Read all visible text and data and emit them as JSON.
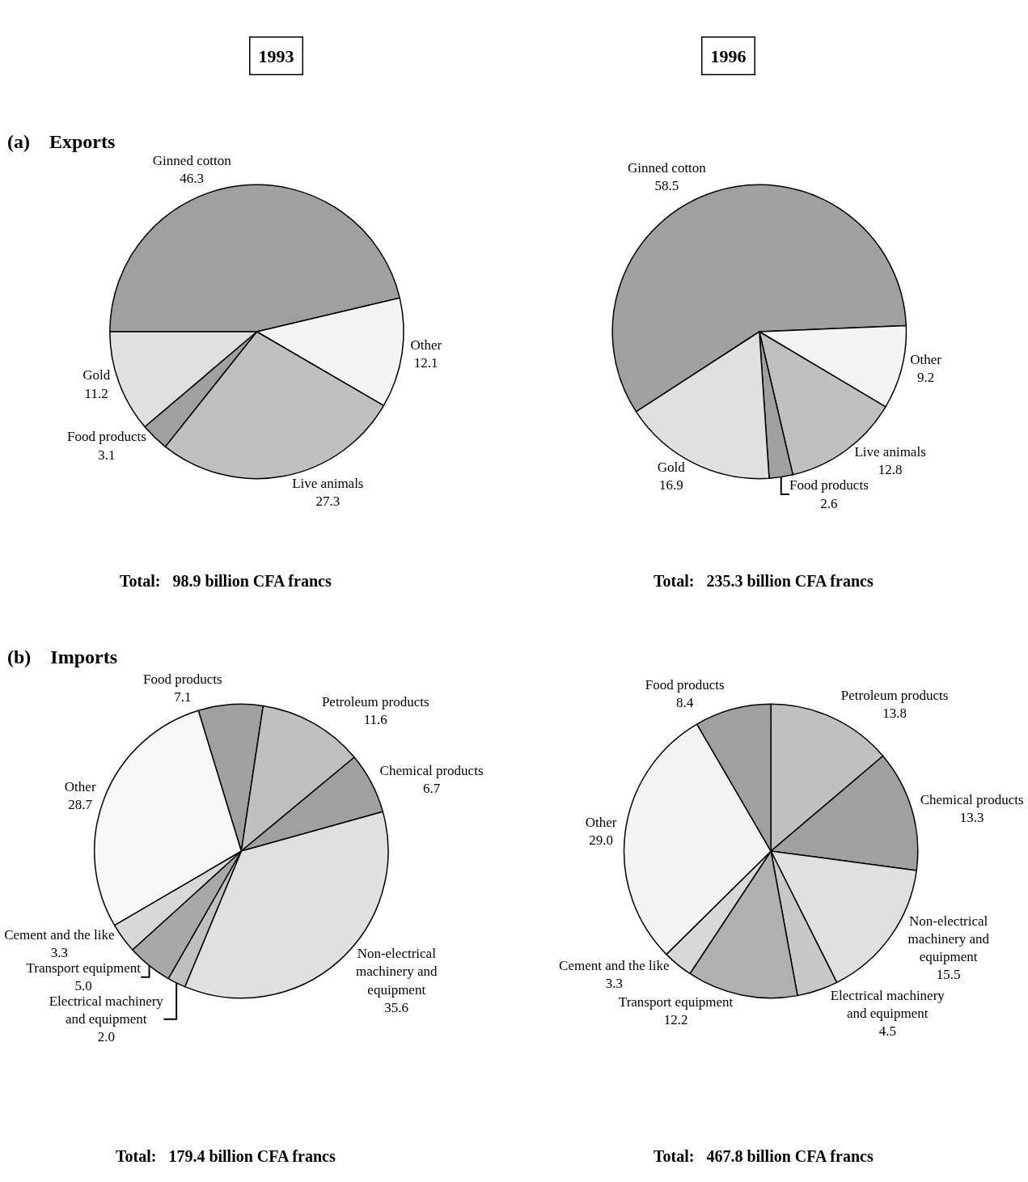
{
  "chart_data": [
    {
      "type": "pie",
      "title": "1993",
      "subtitle": "(a)    Exports",
      "categories": [
        "Ginned cotton",
        "Other",
        "Live animals",
        "Food products",
        "Gold"
      ],
      "values": [
        46.3,
        12.1,
        27.3,
        3.1,
        11.2
      ],
      "value_labels": [
        "46.3",
        "12.1",
        "27.3",
        "3.1",
        "11.2"
      ],
      "colors": [
        "#a0a0a0",
        "#f4f4f4",
        "#c0c0c0",
        "#a0a0a0",
        "#e0e0e0"
      ],
      "data_labels": true,
      "annotations": [
        "Total:   98.9 billion CFA francs"
      ]
    },
    {
      "type": "pie",
      "title": "1996",
      "categories": [
        "Ginned cotton",
        "Other",
        "Live animals",
        "Food products",
        "Gold"
      ],
      "values": [
        58.5,
        9.2,
        12.8,
        2.6,
        16.9
      ],
      "value_labels": [
        "58.5",
        "9.2",
        "12.8",
        "2.6",
        "16.9"
      ],
      "colors": [
        "#a0a0a0",
        "#f4f4f4",
        "#c0c0c0",
        "#a0a0a0",
        "#e0e0e0"
      ],
      "data_labels": true,
      "annotations": [
        "Total:   235.3 billion CFA francs"
      ]
    },
    {
      "type": "pie",
      "subtitle": "(b)    Imports",
      "categories": [
        "Food products",
        "Petroleum products",
        "Chemical products",
        "Non-electrical machinery and equipment",
        "Electrical machinery and equipment",
        "Transport equipment",
        "Cement and the like",
        "Other"
      ],
      "values": [
        7.1,
        11.6,
        6.7,
        35.6,
        2.0,
        5.0,
        3.3,
        28.7
      ],
      "value_labels": [
        "7.1",
        "11.6",
        "6.7",
        "35.6",
        "2.0",
        "5.0",
        "3.3",
        "28.7"
      ],
      "colors": [
        "#a0a0a0",
        "#c0c0c0",
        "#a0a0a0",
        "#e0e0e0",
        "#c0c0c0",
        "#a8a8a8",
        "#d8d8d8",
        "#f8f8f8"
      ],
      "data_labels": true,
      "annotations": [
        "Total:   179.4 billion CFA francs"
      ]
    },
    {
      "type": "pie",
      "categories": [
        "Petroleum products",
        "Chemical products",
        "Non-electrical machinery and equipment",
        "Electrical machinery and equipment",
        "Transport equipment",
        "Cement and the like",
        "Other",
        "Food products"
      ],
      "values": [
        13.8,
        13.3,
        15.5,
        4.5,
        12.2,
        3.3,
        29.0,
        8.4
      ],
      "value_labels": [
        "13.8",
        "13.3",
        "15.5",
        "4.5",
        "12.2",
        "3.3",
        "29.0",
        "8.4"
      ],
      "colors": [
        "#c0c0c0",
        "#a0a0a0",
        "#e0e0e0",
        "#c8c8c8",
        "#b0b0b0",
        "#d8d8d8",
        "#f4f4f4",
        "#a0a0a0"
      ],
      "data_labels": true,
      "annotations": [
        "Total:   467.8 billion CFA francs"
      ]
    }
  ]
}
